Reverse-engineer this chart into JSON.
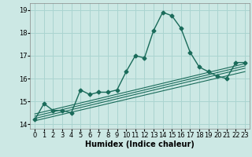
{
  "title": "",
  "xlabel": "Humidex (Indice chaleur)",
  "background_color": "#cce8e4",
  "grid_color": "#aad4d0",
  "line_color": "#1a6b5a",
  "xlim": [
    -0.5,
    23.5
  ],
  "ylim": [
    13.8,
    19.3
  ],
  "x_ticks": [
    0,
    1,
    2,
    3,
    4,
    5,
    6,
    7,
    8,
    9,
    10,
    11,
    12,
    13,
    14,
    15,
    16,
    17,
    18,
    19,
    20,
    21,
    22,
    23
  ],
  "y_ticks": [
    14,
    15,
    16,
    17,
    18,
    19
  ],
  "main_curve_x": [
    0,
    1,
    2,
    3,
    4,
    5,
    6,
    7,
    8,
    9,
    10,
    11,
    12,
    13,
    14,
    15,
    16,
    17,
    18,
    19,
    20,
    21,
    22,
    23
  ],
  "main_curve_y": [
    14.2,
    14.9,
    14.6,
    14.6,
    14.5,
    15.5,
    15.3,
    15.4,
    15.4,
    15.5,
    16.3,
    17.0,
    16.9,
    18.1,
    18.9,
    18.75,
    18.2,
    17.15,
    16.5,
    16.3,
    16.1,
    16.0,
    16.7,
    16.7
  ],
  "linear_lines": [
    {
      "x": [
        0,
        23
      ],
      "y": [
        14.15,
        16.3
      ]
    },
    {
      "x": [
        0,
        23
      ],
      "y": [
        14.25,
        16.45
      ]
    },
    {
      "x": [
        0,
        23
      ],
      "y": [
        14.35,
        16.55
      ]
    },
    {
      "x": [
        0,
        23
      ],
      "y": [
        14.45,
        16.65
      ]
    }
  ],
  "marker_size": 2.5,
  "line_width": 1.0,
  "font_size_ticks": 6,
  "font_size_xlabel": 7
}
